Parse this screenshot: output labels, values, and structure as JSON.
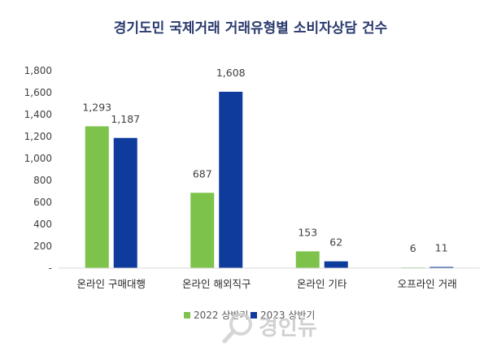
{
  "chart_data": {
    "type": "bar",
    "title": "경기도민 국제거래 거래유형별 소비자상담 건수",
    "categories": [
      "온라인 구매대행",
      "온라인 해외직구",
      "온라인 기타",
      "오프라인 거래"
    ],
    "series": [
      {
        "name": "2022 상반기",
        "values": [
          1293,
          687,
          153,
          6
        ],
        "color": "#7dc24b"
      },
      {
        "name": "2023 상반기",
        "values": [
          1187,
          1608,
          62,
          11
        ],
        "color": "#0f3c9c"
      }
    ],
    "ylim": [
      0,
      1800
    ],
    "ytick_labels": [
      "-",
      "200",
      "400",
      "600",
      "800",
      "1,000",
      "1,200",
      "1,400",
      "1,600",
      "1,800"
    ],
    "data_labels": [
      [
        "1,293",
        "687",
        "153",
        "6"
      ],
      [
        "1,187",
        "1,608",
        "62",
        "11"
      ]
    ],
    "legend_position": "bottom",
    "grid": false
  },
  "watermark": {
    "text": "경인뉴",
    "icon": "magnifier-logo-icon"
  }
}
